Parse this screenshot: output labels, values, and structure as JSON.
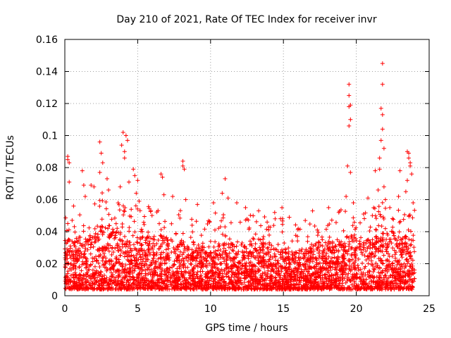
{
  "chart_data": {
    "type": "scatter",
    "title": "Day 210 of 2021, Rate Of TEC Index for receiver invr",
    "xlabel": "GPS time / hours",
    "ylabel": "ROTI / TECUs",
    "xlim": [
      0,
      25
    ],
    "ylim": [
      0,
      0.16
    ],
    "xticks": [
      0,
      5,
      10,
      15,
      20,
      25
    ],
    "xtick_labels": [
      "0",
      "5",
      "10",
      "15",
      "20",
      "25"
    ],
    "yticks": [
      0,
      0.02,
      0.04,
      0.06,
      0.08,
      0.1,
      0.12,
      0.14,
      0.16
    ],
    "ytick_labels": [
      "0",
      "0.02",
      "0.04",
      "0.06",
      "0.08",
      "0.1",
      "0.12",
      "0.14",
      "0.16"
    ],
    "grid": true,
    "marker": "plus",
    "color": "#ff0000",
    "x_data_range": [
      0,
      24
    ],
    "envelope": {
      "hours": [
        0,
        0.5,
        1,
        1.5,
        2,
        2.5,
        3,
        3.5,
        4,
        4.5,
        5,
        5.5,
        6,
        6.5,
        7,
        7.5,
        8,
        8.5,
        9,
        9.5,
        10,
        10.5,
        11,
        11.5,
        12,
        12.5,
        13,
        13.5,
        14,
        14.5,
        15,
        15.5,
        16,
        16.5,
        17,
        17.5,
        18,
        18.5,
        19,
        19.5,
        20,
        20.5,
        21,
        21.5,
        22,
        22.5,
        23,
        23.5,
        24
      ],
      "typical_max": [
        0.035,
        0.035,
        0.034,
        0.036,
        0.042,
        0.05,
        0.046,
        0.04,
        0.04,
        0.039,
        0.038,
        0.038,
        0.038,
        0.037,
        0.037,
        0.036,
        0.036,
        0.035,
        0.034,
        0.034,
        0.034,
        0.034,
        0.034,
        0.033,
        0.033,
        0.033,
        0.033,
        0.033,
        0.032,
        0.032,
        0.032,
        0.03,
        0.028,
        0.03,
        0.033,
        0.034,
        0.035,
        0.035,
        0.036,
        0.038,
        0.038,
        0.036,
        0.037,
        0.038,
        0.042,
        0.04,
        0.038,
        0.037,
        0.036
      ],
      "floor": 0.004
    },
    "notable_points": [
      {
        "x": 0.2,
        "y": 0.087
      },
      {
        "x": 0.2,
        "y": 0.085
      },
      {
        "x": 0.3,
        "y": 0.083
      },
      {
        "x": 0.3,
        "y": 0.071
      },
      {
        "x": 0.6,
        "y": 0.056
      },
      {
        "x": 1.2,
        "y": 0.078
      },
      {
        "x": 1.3,
        "y": 0.069
      },
      {
        "x": 1.4,
        "y": 0.062
      },
      {
        "x": 1.8,
        "y": 0.069
      },
      {
        "x": 2.0,
        "y": 0.068
      },
      {
        "x": 2.4,
        "y": 0.096
      },
      {
        "x": 2.5,
        "y": 0.089
      },
      {
        "x": 2.6,
        "y": 0.083
      },
      {
        "x": 2.4,
        "y": 0.077
      },
      {
        "x": 2.9,
        "y": 0.073
      },
      {
        "x": 3.0,
        "y": 0.066
      },
      {
        "x": 3.9,
        "y": 0.094
      },
      {
        "x": 4.0,
        "y": 0.102
      },
      {
        "x": 4.1,
        "y": 0.09
      },
      {
        "x": 4.2,
        "y": 0.1
      },
      {
        "x": 4.3,
        "y": 0.097
      },
      {
        "x": 4.1,
        "y": 0.086
      },
      {
        "x": 3.8,
        "y": 0.068
      },
      {
        "x": 4.4,
        "y": 0.071
      },
      {
        "x": 4.7,
        "y": 0.079
      },
      {
        "x": 4.8,
        "y": 0.075
      },
      {
        "x": 5.0,
        "y": 0.072
      },
      {
        "x": 4.9,
        "y": 0.064
      },
      {
        "x": 5.1,
        "y": 0.059
      },
      {
        "x": 6.6,
        "y": 0.076
      },
      {
        "x": 6.7,
        "y": 0.074
      },
      {
        "x": 6.8,
        "y": 0.063
      },
      {
        "x": 7.4,
        "y": 0.062
      },
      {
        "x": 8.1,
        "y": 0.084
      },
      {
        "x": 8.1,
        "y": 0.081
      },
      {
        "x": 8.2,
        "y": 0.079
      },
      {
        "x": 8.3,
        "y": 0.06
      },
      {
        "x": 9.1,
        "y": 0.057
      },
      {
        "x": 10.2,
        "y": 0.058
      },
      {
        "x": 10.8,
        "y": 0.064
      },
      {
        "x": 11.0,
        "y": 0.073
      },
      {
        "x": 11.2,
        "y": 0.061
      },
      {
        "x": 11.8,
        "y": 0.058
      },
      {
        "x": 12.4,
        "y": 0.055
      },
      {
        "x": 13.3,
        "y": 0.053
      },
      {
        "x": 14.4,
        "y": 0.052
      },
      {
        "x": 14.9,
        "y": 0.055
      },
      {
        "x": 15.4,
        "y": 0.049
      },
      {
        "x": 16.5,
        "y": 0.047
      },
      {
        "x": 17.0,
        "y": 0.053
      },
      {
        "x": 18.1,
        "y": 0.055
      },
      {
        "x": 18.8,
        "y": 0.052
      },
      {
        "x": 19.3,
        "y": 0.062
      },
      {
        "x": 19.4,
        "y": 0.081
      },
      {
        "x": 19.5,
        "y": 0.132
      },
      {
        "x": 19.5,
        "y": 0.125
      },
      {
        "x": 19.6,
        "y": 0.119
      },
      {
        "x": 19.5,
        "y": 0.118
      },
      {
        "x": 19.6,
        "y": 0.11
      },
      {
        "x": 19.5,
        "y": 0.106
      },
      {
        "x": 19.6,
        "y": 0.077
      },
      {
        "x": 19.8,
        "y": 0.058
      },
      {
        "x": 20.8,
        "y": 0.061
      },
      {
        "x": 20.5,
        "y": 0.051
      },
      {
        "x": 21.3,
        "y": 0.078
      },
      {
        "x": 21.5,
        "y": 0.066
      },
      {
        "x": 21.6,
        "y": 0.079
      },
      {
        "x": 21.6,
        "y": 0.086
      },
      {
        "x": 21.7,
        "y": 0.097
      },
      {
        "x": 21.8,
        "y": 0.104
      },
      {
        "x": 21.8,
        "y": 0.113
      },
      {
        "x": 21.7,
        "y": 0.117
      },
      {
        "x": 21.8,
        "y": 0.132
      },
      {
        "x": 21.8,
        "y": 0.145
      },
      {
        "x": 21.9,
        "y": 0.092
      },
      {
        "x": 21.9,
        "y": 0.068
      },
      {
        "x": 22.0,
        "y": 0.06
      },
      {
        "x": 22.3,
        "y": 0.055
      },
      {
        "x": 22.9,
        "y": 0.062
      },
      {
        "x": 23.0,
        "y": 0.078
      },
      {
        "x": 23.4,
        "y": 0.065
      },
      {
        "x": 23.5,
        "y": 0.09
      },
      {
        "x": 23.6,
        "y": 0.089
      },
      {
        "x": 23.6,
        "y": 0.086
      },
      {
        "x": 23.7,
        "y": 0.083
      },
      {
        "x": 23.7,
        "y": 0.081
      },
      {
        "x": 23.8,
        "y": 0.076
      },
      {
        "x": 23.5,
        "y": 0.072
      },
      {
        "x": 23.9,
        "y": 0.058
      }
    ]
  }
}
